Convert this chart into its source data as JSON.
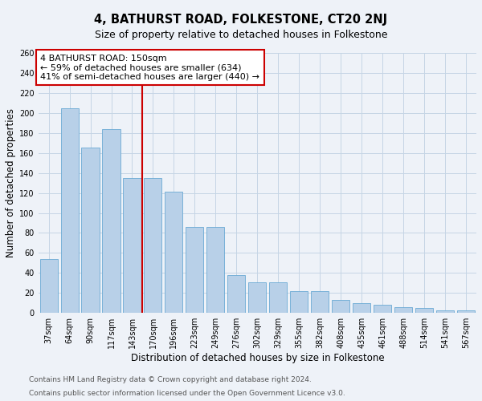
{
  "title": "4, BATHURST ROAD, FOLKESTONE, CT20 2NJ",
  "subtitle": "Size of property relative to detached houses in Folkestone",
  "xlabel": "Distribution of detached houses by size in Folkestone",
  "ylabel": "Number of detached properties",
  "categories": [
    "37sqm",
    "64sqm",
    "90sqm",
    "117sqm",
    "143sqm",
    "170sqm",
    "196sqm",
    "223sqm",
    "249sqm",
    "276sqm",
    "302sqm",
    "329sqm",
    "355sqm",
    "382sqm",
    "408sqm",
    "435sqm",
    "461sqm",
    "488sqm",
    "514sqm",
    "541sqm",
    "567sqm"
  ],
  "values": [
    54,
    205,
    165,
    184,
    135,
    135,
    121,
    86,
    86,
    38,
    31,
    31,
    22,
    22,
    13,
    10,
    8,
    6,
    5,
    3,
    3
  ],
  "bar_color": "#b8d0e8",
  "bar_edge_color": "#6aaad4",
  "grid_color": "#c5d5e5",
  "background_color": "#eef2f8",
  "vline_x": 4.5,
  "vline_color": "#cc0000",
  "annotation_text": "4 BATHURST ROAD: 150sqm\n← 59% of detached houses are smaller (634)\n41% of semi-detached houses are larger (440) →",
  "annotation_box_color": "#ffffff",
  "annotation_box_edge": "#cc0000",
  "ylim": [
    0,
    260
  ],
  "yticks": [
    0,
    20,
    40,
    60,
    80,
    100,
    120,
    140,
    160,
    180,
    200,
    220,
    240,
    260
  ],
  "footer_line1": "Contains HM Land Registry data © Crown copyright and database right 2024.",
  "footer_line2": "Contains public sector information licensed under the Open Government Licence v3.0.",
  "title_fontsize": 10.5,
  "subtitle_fontsize": 9,
  "ylabel_fontsize": 8.5,
  "xlabel_fontsize": 8.5,
  "tick_fontsize": 7,
  "annotation_fontsize": 8,
  "footer_fontsize": 6.5
}
